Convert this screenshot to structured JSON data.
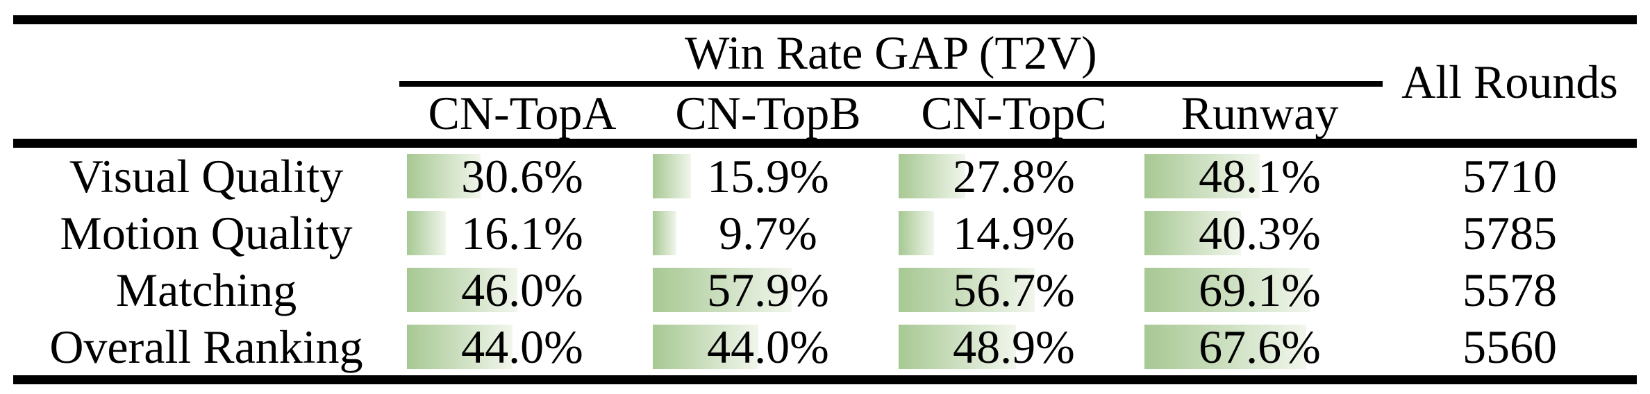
{
  "table": {
    "title": "Win Rate GAP (T2V)",
    "all_rounds_header": "All Rounds",
    "columns": [
      "CN-TopA",
      "CN-TopB",
      "CN-TopC",
      "Runway"
    ],
    "rows": [
      {
        "label": "Visual Quality",
        "values": [
          30.6,
          15.9,
          27.8,
          48.1
        ],
        "all_rounds": "5710"
      },
      {
        "label": "Motion Quality",
        "values": [
          16.1,
          9.7,
          14.9,
          40.3
        ],
        "all_rounds": "5785"
      },
      {
        "label": "Matching",
        "values": [
          46.0,
          57.9,
          56.7,
          69.1
        ],
        "all_rounds": "5578"
      },
      {
        "label": "Overall Ranking",
        "values": [
          44.0,
          44.0,
          48.9,
          67.6
        ],
        "all_rounds": "5560"
      }
    ],
    "colors": {
      "bar_gradient_start": "#a7c893",
      "bar_gradient_end": "#f1f6ec",
      "rule": "#000000",
      "text": "#000000",
      "background": "#ffffff"
    }
  },
  "chart_data": {
    "type": "table",
    "title": "Win Rate GAP (T2V)",
    "columns": [
      "CN-TopA",
      "CN-TopB",
      "CN-TopC",
      "Runway",
      "All Rounds"
    ],
    "categories": [
      "Visual Quality",
      "Motion Quality",
      "Matching",
      "Overall Ranking"
    ],
    "series": [
      {
        "name": "CN-TopA",
        "values": [
          30.6,
          16.1,
          46.0,
          44.0
        ],
        "unit": "%"
      },
      {
        "name": "CN-TopB",
        "values": [
          15.9,
          9.7,
          57.9,
          44.0
        ],
        "unit": "%"
      },
      {
        "name": "CN-TopC",
        "values": [
          27.8,
          14.9,
          56.7,
          48.9
        ],
        "unit": "%"
      },
      {
        "name": "Runway",
        "values": [
          48.1,
          40.3,
          69.1,
          67.6
        ],
        "unit": "%"
      },
      {
        "name": "All Rounds",
        "values": [
          5710,
          5785,
          5578,
          5560
        ],
        "unit": "count"
      }
    ],
    "layout_hints": {
      "in_cell_bars": true,
      "bar_scale": "bar width proportional to percentage of cell width",
      "bar_columns": [
        "CN-TopA",
        "CN-TopB",
        "CN-TopC",
        "Runway"
      ]
    }
  }
}
